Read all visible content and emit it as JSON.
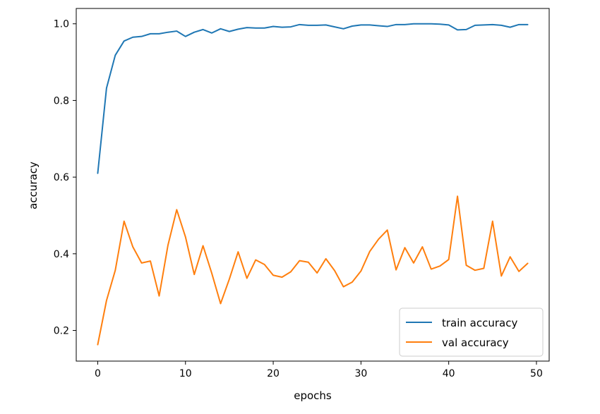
{
  "chart_data": {
    "type": "line",
    "title": "",
    "xlabel": "epochs",
    "ylabel": "accuracy",
    "xlim": [
      -2.45,
      51.45
    ],
    "ylim": [
      0.12,
      1.04
    ],
    "xticks": [
      0,
      10,
      20,
      30,
      40,
      50
    ],
    "yticks": [
      0.2,
      0.4,
      0.6,
      0.8,
      1.0
    ],
    "xtick_labels": [
      "0",
      "10",
      "20",
      "30",
      "40",
      "50"
    ],
    "ytick_labels": [
      "0.2",
      "0.4",
      "0.6",
      "0.8",
      "1.0"
    ],
    "grid": false,
    "legend_position": "lower-right",
    "x": [
      0,
      1,
      2,
      3,
      4,
      5,
      6,
      7,
      8,
      9,
      10,
      11,
      12,
      13,
      14,
      15,
      16,
      17,
      18,
      19,
      20,
      21,
      22,
      23,
      24,
      25,
      26,
      27,
      28,
      29,
      30,
      31,
      32,
      33,
      34,
      35,
      36,
      37,
      38,
      39,
      40,
      41,
      42,
      43,
      44,
      45,
      46,
      47,
      48,
      49
    ],
    "series": [
      {
        "name": "train accuracy",
        "color": "#1f77b4",
        "values": [
          0.61,
          0.832,
          0.918,
          0.955,
          0.965,
          0.967,
          0.974,
          0.974,
          0.978,
          0.981,
          0.967,
          0.978,
          0.985,
          0.976,
          0.987,
          0.98,
          0.986,
          0.99,
          0.989,
          0.989,
          0.993,
          0.991,
          0.992,
          0.998,
          0.996,
          0.996,
          0.997,
          0.992,
          0.987,
          0.994,
          0.997,
          0.997,
          0.995,
          0.993,
          0.998,
          0.998,
          1.0,
          1.0,
          1.0,
          0.999,
          0.997,
          0.984,
          0.985,
          0.996,
          0.997,
          0.998,
          0.996,
          0.991,
          0.998,
          0.998
        ]
      },
      {
        "name": "val accuracy",
        "color": "#ff7f0e",
        "values": [
          0.163,
          0.278,
          0.357,
          0.485,
          0.418,
          0.376,
          0.381,
          0.29,
          0.422,
          0.515,
          0.444,
          0.346,
          0.421,
          0.349,
          0.27,
          0.334,
          0.405,
          0.336,
          0.384,
          0.372,
          0.344,
          0.339,
          0.353,
          0.382,
          0.378,
          0.35,
          0.387,
          0.356,
          0.314,
          0.326,
          0.355,
          0.406,
          0.438,
          0.462,
          0.358,
          0.416,
          0.376,
          0.418,
          0.36,
          0.368,
          0.385,
          0.55,
          0.37,
          0.357,
          0.362,
          0.485,
          0.342,
          0.392,
          0.354,
          0.375
        ]
      }
    ]
  }
}
